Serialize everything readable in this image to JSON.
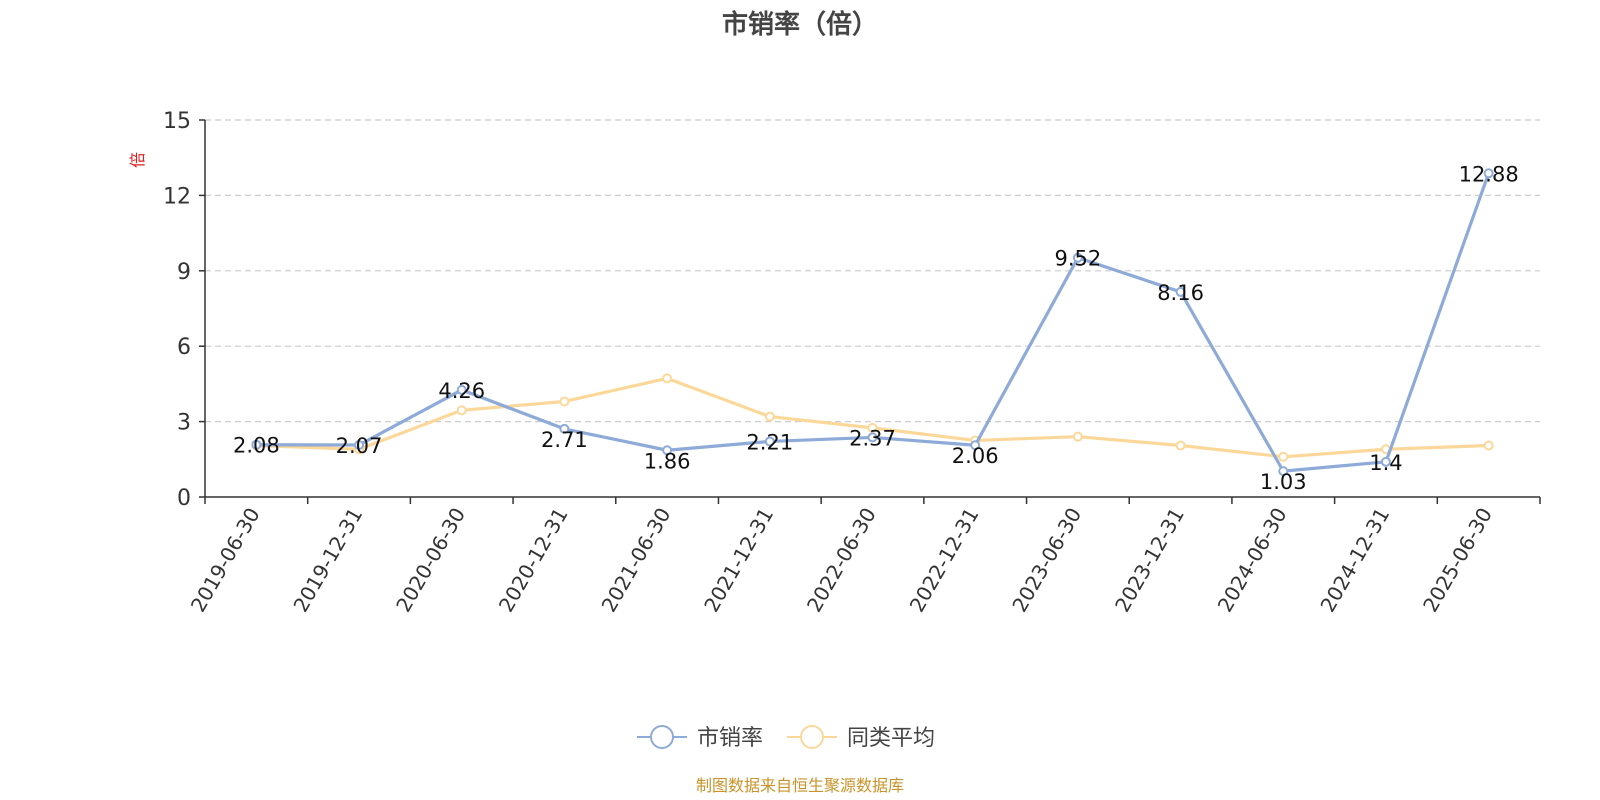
{
  "chart_data": {
    "type": "line",
    "title": "市销率（倍）",
    "ylabel": "倍",
    "xlabel": "",
    "ylim": [
      0,
      15
    ],
    "yticks": [
      0,
      3,
      6,
      9,
      12,
      15
    ],
    "grid": true,
    "categories": [
      "2019-06-30",
      "2019-12-31",
      "2020-06-30",
      "2020-12-31",
      "2021-06-30",
      "2021-12-31",
      "2022-06-30",
      "2022-12-31",
      "2023-06-30",
      "2023-12-31",
      "2024-06-30",
      "2024-12-31",
      "2025-06-30"
    ],
    "series": [
      {
        "name": "市销率",
        "color": "#8eaad8",
        "values": [
          2.08,
          2.07,
          4.26,
          2.71,
          1.86,
          2.21,
          2.37,
          2.06,
          9.52,
          8.16,
          1.03,
          1.4,
          12.88
        ],
        "labels": [
          "2.08",
          "2.07",
          "4.26",
          "2.71",
          "1.86",
          "2.21",
          "2.37",
          "2.06",
          "9.52",
          "8.16",
          "1.03",
          "1.4",
          "12.88"
        ]
      },
      {
        "name": "同类平均",
        "color": "#fbd89a",
        "values": [
          2.05,
          1.9,
          3.45,
          3.8,
          4.72,
          3.2,
          2.75,
          2.25,
          2.4,
          2.05,
          1.6,
          1.9,
          2.05
        ]
      }
    ],
    "legend_position": "bottom"
  },
  "source_note": "制图数据来自恒生聚源数据库"
}
